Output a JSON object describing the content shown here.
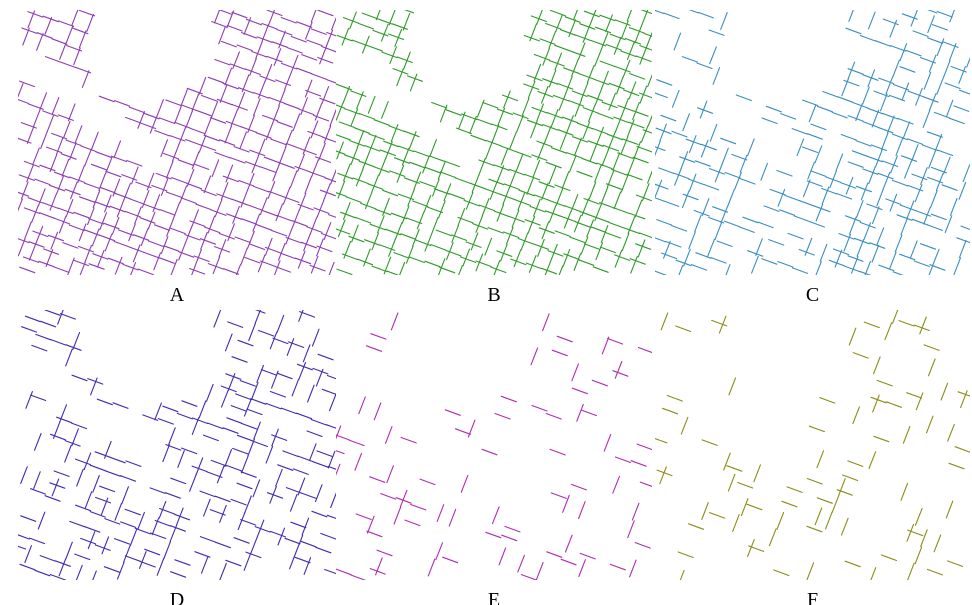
{
  "panels": [
    {
      "label": "A",
      "color": "#8e3cb4"
    },
    {
      "label": "B",
      "color": "#2f9a2a"
    },
    {
      "label": "C",
      "color": "#3a8ec2"
    },
    {
      "label": "D",
      "color": "#3d2db4"
    },
    {
      "label": "E",
      "color": "#b02cb2"
    },
    {
      "label": "F",
      "color": "#8c8c18"
    }
  ]
}
